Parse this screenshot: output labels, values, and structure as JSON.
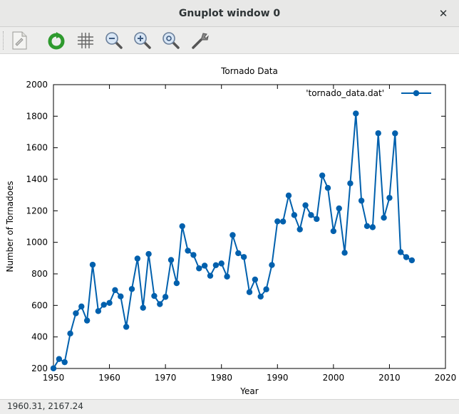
{
  "window": {
    "title": "Gnuplot window 0"
  },
  "toolbar": {
    "icons": [
      "export-icon",
      "replot-icon",
      "grid-icon",
      "zoom-out-icon",
      "zoom-in-icon",
      "zoom-reset-icon",
      "settings-icon"
    ]
  },
  "status": {
    "coords": "1960.31,  2167.24"
  },
  "colors": {
    "series": "#0060ad"
  },
  "chart_data": {
    "type": "line",
    "title": "Tornado Data",
    "xlabel": "Year",
    "ylabel": "Number of Tornadoes",
    "xlim": [
      1950,
      2020
    ],
    "ylim": [
      200,
      2000
    ],
    "xticks": [
      1950,
      1960,
      1970,
      1980,
      1990,
      2000,
      2010,
      2020
    ],
    "yticks": [
      200,
      400,
      600,
      800,
      1000,
      1200,
      1400,
      1600,
      1800,
      2000
    ],
    "legend": "top-right",
    "grid": false,
    "series": [
      {
        "name": "'tornado_data.dat'",
        "x": [
          1950,
          1951,
          1952,
          1953,
          1954,
          1955,
          1956,
          1957,
          1958,
          1959,
          1960,
          1961,
          1962,
          1963,
          1964,
          1965,
          1966,
          1967,
          1968,
          1969,
          1970,
          1971,
          1972,
          1973,
          1974,
          1975,
          1976,
          1977,
          1978,
          1979,
          1980,
          1981,
          1982,
          1983,
          1984,
          1985,
          1986,
          1987,
          1988,
          1989,
          1990,
          1991,
          1992,
          1993,
          1994,
          1995,
          1996,
          1997,
          1998,
          1999,
          2000,
          2001,
          2002,
          2003,
          2004,
          2005,
          2006,
          2007,
          2008,
          2009,
          2010,
          2011,
          2012,
          2013,
          2014
        ],
        "y": [
          201,
          260,
          240,
          422,
          550,
          593,
          504,
          858,
          564,
          604,
          616,
          697,
          657,
          464,
          704,
          897,
          585,
          926,
          660,
          608,
          654,
          888,
          741,
          1102,
          947,
          920,
          835,
          852,
          788,
          855,
          866,
          783,
          1046,
          931,
          907,
          684,
          764,
          656,
          702,
          856,
          1133,
          1132,
          1297,
          1173,
          1082,
          1235,
          1173,
          1148,
          1424,
          1345,
          1071,
          1215,
          934,
          1374,
          1817,
          1264,
          1103,
          1096,
          1692,
          1156,
          1282,
          1691,
          938,
          906,
          886
        ]
      }
    ]
  }
}
